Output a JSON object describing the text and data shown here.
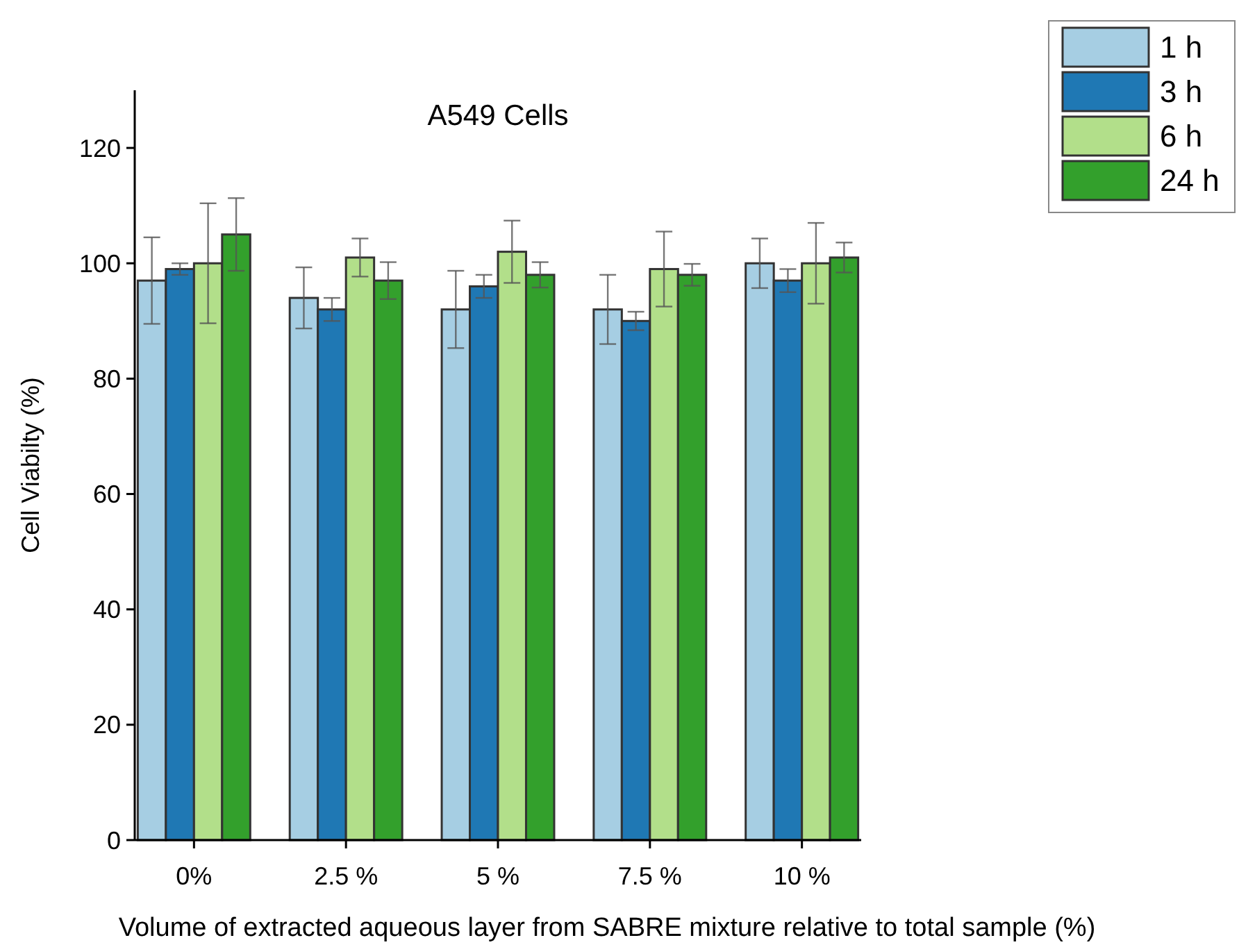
{
  "chart_data": {
    "type": "bar",
    "title": "A549 Cells",
    "xlabel": "Volume of extracted aqueous layer from SABRE mixture relative to total sample (%)",
    "ylabel": "Cell Viabilty (%)",
    "categories": [
      "0%",
      "2.5 %",
      "5 %",
      "7.5 %",
      "10 %"
    ],
    "series": [
      {
        "name": "1 h",
        "color": "#a6cee3",
        "values": [
          97,
          94,
          92,
          92,
          100
        ],
        "errors": [
          7.5,
          5.3,
          6.7,
          6,
          4.3
        ]
      },
      {
        "name": "3 h",
        "color": "#1f78b4",
        "values": [
          99,
          92,
          96,
          90,
          97
        ],
        "errors": [
          1,
          2,
          2,
          1.6,
          2
        ]
      },
      {
        "name": "6 h",
        "color": "#b2df8a",
        "values": [
          100,
          101,
          102,
          99,
          100
        ],
        "errors": [
          10.4,
          3.3,
          5.4,
          6.5,
          7
        ]
      },
      {
        "name": "24 h",
        "color": "#33a02c",
        "values": [
          105,
          97,
          98,
          98,
          101
        ],
        "errors": [
          6.3,
          3.2,
          2.2,
          1.9,
          2.6
        ]
      }
    ],
    "ylim": [
      0,
      130
    ],
    "yticks": [
      0,
      20,
      40,
      60,
      80,
      100,
      120
    ],
    "grid": false,
    "legend": "top right"
  }
}
